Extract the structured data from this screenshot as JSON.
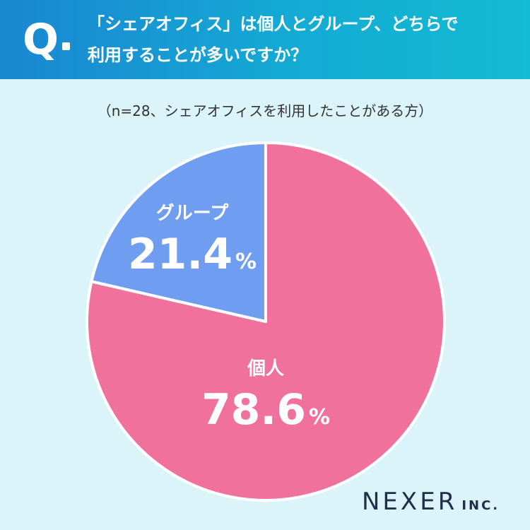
{
  "header": {
    "q_letter": "Q",
    "question_line1": "「シェアオフィス」は個人とグループ、どちらで",
    "question_line2": "利用することが多いですか？"
  },
  "subtitle": "（n=28、シェアオフィスを利用したことがある方）",
  "chart_data": {
    "type": "pie",
    "title": "「シェアオフィス」は個人とグループ、どちらで利用することが多いですか？",
    "subtitle": "（n=28、シェアオフィスを利用したことがある方）",
    "slices": [
      {
        "label": "個人",
        "value": 78.6,
        "display": "78.6",
        "unit": "%",
        "color": "#f0729c"
      },
      {
        "label": "グループ",
        "value": 21.4,
        "display": "21.4",
        "unit": "%",
        "color": "#6f9ef0"
      }
    ],
    "start": "12 o'clock",
    "direction": "clockwise"
  },
  "colors": {
    "header_start": "#1a86d1",
    "header_end": "#12bcd2",
    "background": "#dbf4f9",
    "slice_border": "#ffffff",
    "logo": "#1f2f4a"
  },
  "logo": {
    "main": "NEXER",
    "sub": "INC."
  }
}
